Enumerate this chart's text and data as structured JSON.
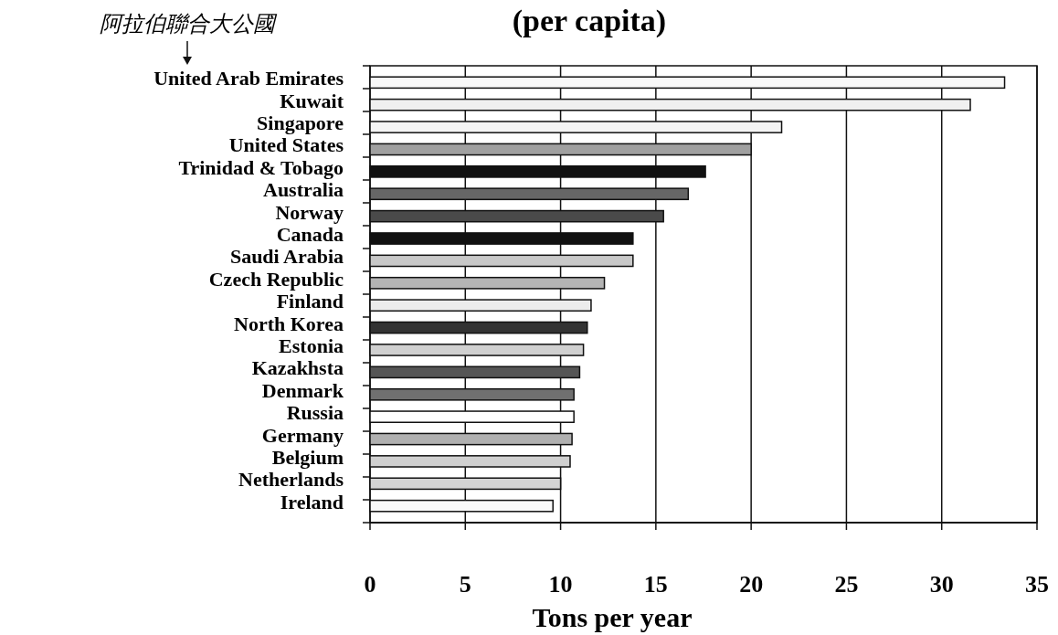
{
  "chart_data": {
    "type": "bar",
    "orientation": "horizontal",
    "title": "(per capita)",
    "xlabel": "Tons per year",
    "annotations": [
      "阿拉伯聯合大公國"
    ],
    "categories": [
      "United Arab Emirates",
      "Kuwait",
      "Singapore",
      "United States",
      "Trinidad & Tobago",
      "Australia",
      "Norway",
      "Canada",
      "Saudi Arabia",
      "Czech Republic",
      "Finland",
      "North Korea",
      "Estonia",
      "Kazakhsta",
      "Denmark",
      "Russia",
      "Germany",
      "Belgium",
      "Netherlands",
      "Ireland"
    ],
    "values": [
      33.3,
      31.5,
      21.6,
      20.0,
      17.6,
      16.7,
      15.4,
      13.8,
      13.8,
      12.3,
      11.6,
      11.4,
      11.2,
      11.0,
      10.7,
      10.7,
      10.6,
      10.5,
      10.0,
      9.6
    ],
    "colors": [
      "#f8f8f8",
      "#f0f0f0",
      "#f4f4f4",
      "#a0a0a0",
      "#111111",
      "#666666",
      "#4a4a4a",
      "#111111",
      "#c8c8c8",
      "#b4b4b4",
      "#ececec",
      "#333333",
      "#d0d0d0",
      "#555555",
      "#707070",
      "#ffffff",
      "#b0b0b0",
      "#d0d0d0",
      "#d4d4d4",
      "#fafafa"
    ],
    "xlim": [
      0,
      35
    ],
    "xticks": [
      0,
      5,
      10,
      15,
      20,
      25,
      30,
      35
    ],
    "grid": "x"
  }
}
